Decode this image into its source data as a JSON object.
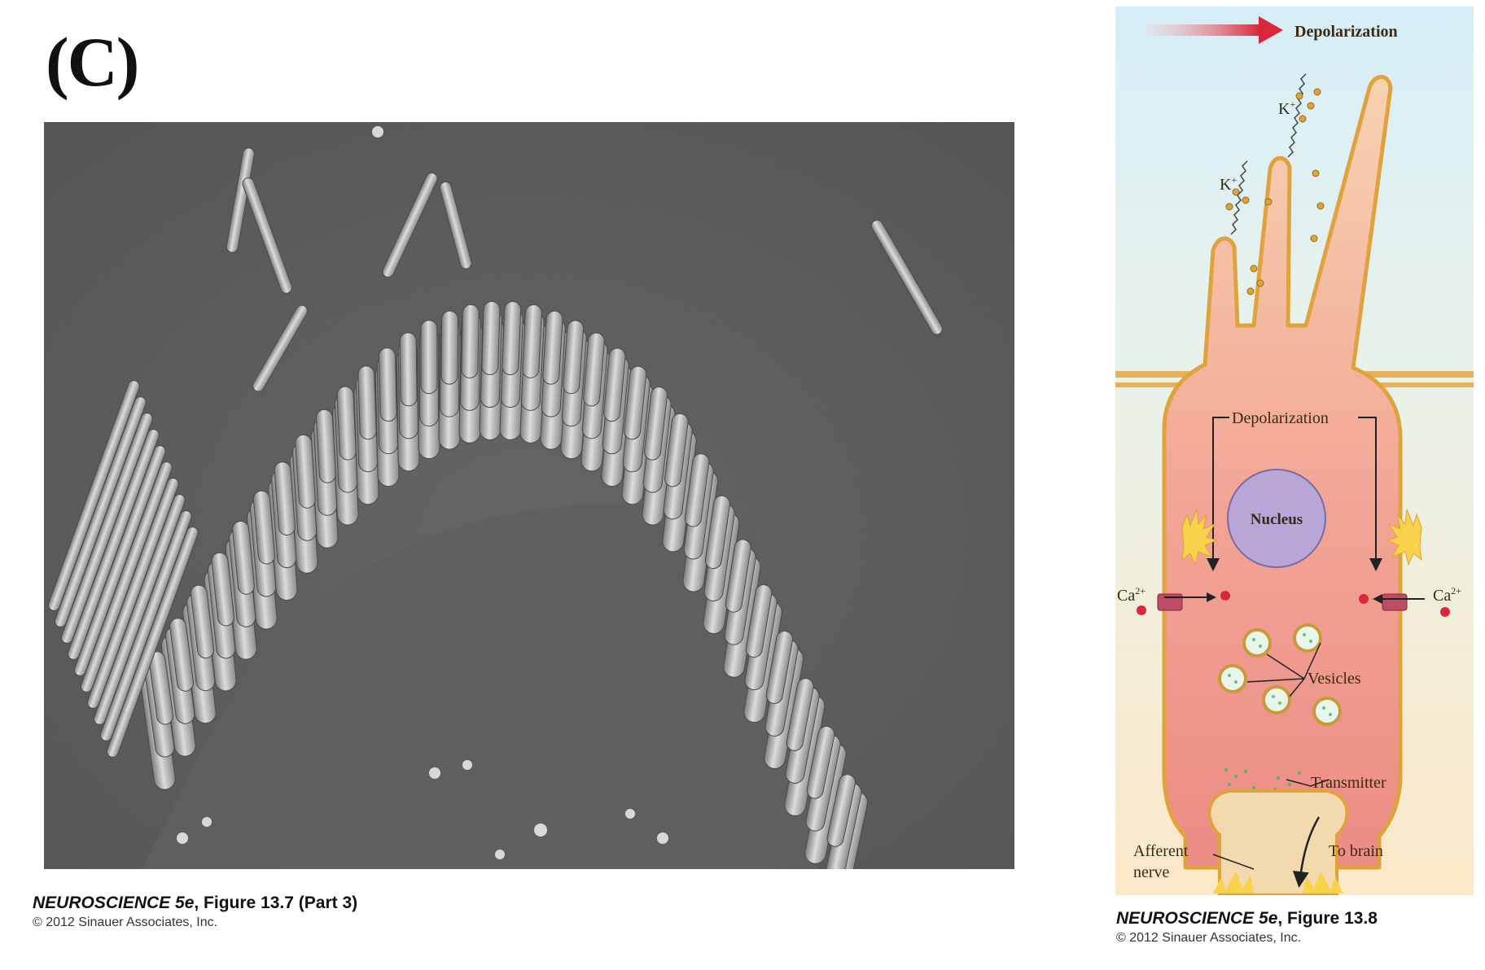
{
  "panel_label": "(C)",
  "left_caption": {
    "book": "NEUROSCIENCE 5e",
    "figure": ", Figure 13.7 (Part 3)",
    "copyright": "© 2012 Sinauer Associates, Inc."
  },
  "right_caption": {
    "book": "NEUROSCIENCE 5e",
    "figure": ", Figure 13.8",
    "copyright": "© 2012 Sinauer Associates, Inc."
  },
  "diagram": {
    "top_arrow_label": "Depolarization",
    "k_label": "K",
    "k_sup": "+",
    "depol_label": "Depolarization",
    "nucleus_label": "Nucleus",
    "ca_label": "Ca",
    "ca_sup": "2+",
    "vesicles_label": "Vesicles",
    "transmitter_label": "Transmitter",
    "afferent_label_1": "Afferent",
    "afferent_label_2": "nerve",
    "to_brain_label": "To brain"
  },
  "colors": {
    "cell_fill_top": "#f7c9a8",
    "cell_fill_bottom": "#ef8f86",
    "membrane": "#e0a23c",
    "background_top": "#d6eef8",
    "background_bottom": "#fbe8c7",
    "nucleus": "#b7a6d6",
    "arrow_red": "#d9263b"
  }
}
